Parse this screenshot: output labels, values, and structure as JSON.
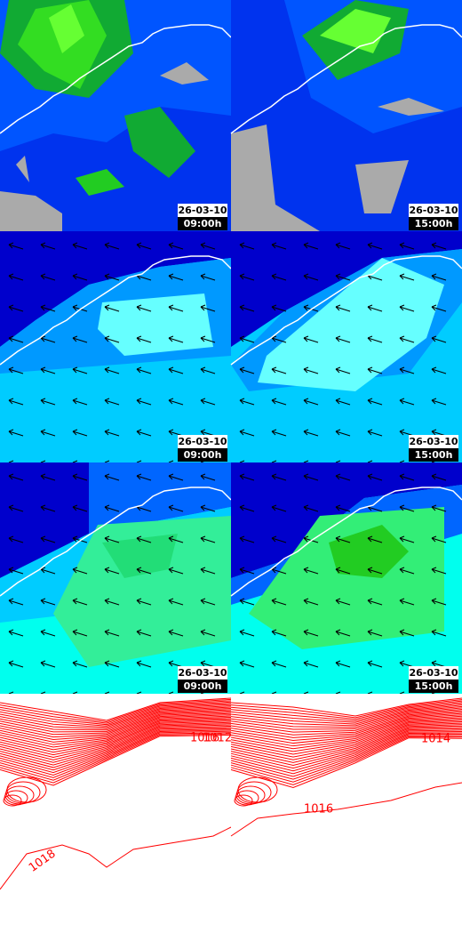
{
  "panels": [
    {
      "date": "26-03-10",
      "time": "09:00h"
    },
    {
      "date": "26-03-10",
      "time": "15:00h"
    },
    {
      "date": "26-03-10",
      "time": "09:00h"
    },
    {
      "date": "26-03-10",
      "time": "15:00h"
    },
    {
      "date": "26-03-10",
      "time": "09:00h"
    },
    {
      "date": "26-03-10",
      "time": "15:00h"
    }
  ],
  "isobar_labels": [
    "1016",
    "1012",
    "1014",
    "1016",
    "1018"
  ]
}
